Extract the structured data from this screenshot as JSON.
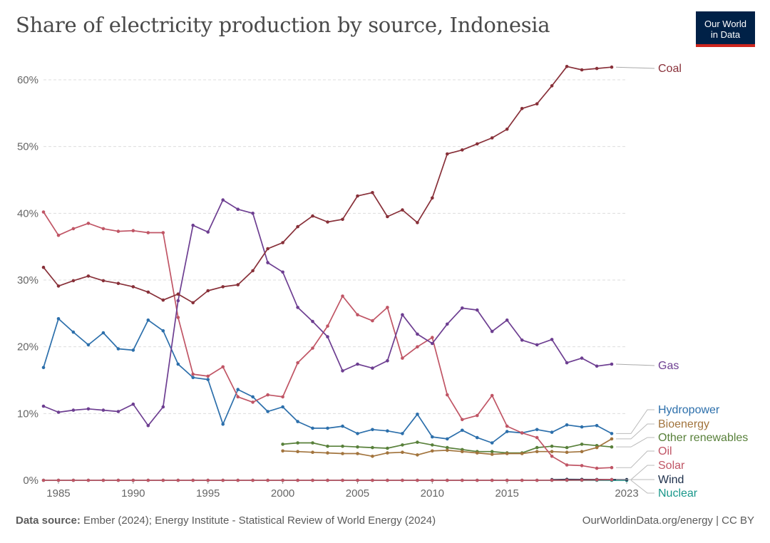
{
  "header": {
    "title": "Share of electricity production by source, Indonesia",
    "logo_line1": "Our World",
    "logo_line2": "in Data"
  },
  "footer": {
    "source_label": "Data source:",
    "source_text": "Ember (2024); Energy Institute - Statistical Review of World Energy (2024)",
    "url_text": "OurWorldinData.org/energy | CC BY"
  },
  "colors": {
    "Coal": "#883039",
    "Gas": "#6d3e91",
    "Hydropower": "#2c6fab",
    "Bioenergy": "#a2743d",
    "Other renewables": "#58803a",
    "Oil": "#c05565",
    "Solar": "#c05565",
    "Wind": "#1c2e4a",
    "Nuclear": "#18978a"
  },
  "chart_data": {
    "type": "line",
    "title": "Share of electricity production by source, Indonesia",
    "xlim": [
      1984,
      2023
    ],
    "ylim": [
      0,
      60
    ],
    "y_ticks": [
      "0%",
      "10%",
      "20%",
      "30%",
      "40%",
      "50%",
      "60%"
    ],
    "x_ticks": [
      "1985",
      "1990",
      "1995",
      "2000",
      "2005",
      "2010",
      "2015",
      "2023"
    ],
    "grid": true,
    "legend": "line-end labels, right",
    "series": [
      {
        "name": "Coal",
        "start": 1984,
        "values": [
          31.9,
          29.1,
          29.9,
          30.6,
          29.9,
          29.5,
          29.0,
          28.2,
          27.0,
          27.9,
          26.6,
          28.4,
          29.0,
          29.3,
          31.4,
          34.7,
          35.6,
          38.0,
          39.6,
          38.7,
          39.1,
          42.6,
          43.1,
          39.5,
          40.5,
          38.6,
          42.3,
          48.9,
          49.5,
          50.4,
          51.3,
          52.6,
          55.7,
          56.4,
          59.1,
          62.0,
          61.5,
          61.7,
          61.9
        ]
      },
      {
        "name": "Gas",
        "start": 1984,
        "values": [
          11.1,
          10.2,
          10.5,
          10.7,
          10.5,
          10.3,
          11.4,
          8.2,
          11.0,
          26.9,
          38.2,
          37.2,
          42.0,
          40.6,
          40.0,
          32.6,
          31.2,
          25.9,
          23.8,
          21.5,
          16.4,
          17.4,
          16.8,
          17.9,
          24.8,
          21.9,
          20.5,
          23.4,
          25.8,
          25.5,
          22.3,
          24.0,
          21.0,
          20.3,
          21.1,
          17.6,
          18.3,
          17.1,
          17.4
        ]
      },
      {
        "name": "Hydropower",
        "start": 1984,
        "values": [
          16.9,
          24.2,
          22.2,
          20.3,
          22.1,
          19.7,
          19.5,
          24.0,
          22.4,
          17.4,
          15.4,
          15.1,
          8.4,
          13.6,
          12.5,
          10.3,
          11.0,
          8.8,
          7.8,
          7.8,
          8.1,
          7.0,
          7.6,
          7.4,
          7.0,
          9.9,
          6.5,
          6.2,
          7.5,
          6.4,
          5.6,
          7.3,
          7.1,
          7.6,
          7.2,
          8.3,
          8.0,
          8.2,
          7.0
        ]
      },
      {
        "name": "Bioenergy",
        "start": 2000,
        "values": [
          4.4,
          4.3,
          4.2,
          4.1,
          4.0,
          4.0,
          3.6,
          4.1,
          4.2,
          3.8,
          4.4,
          4.5,
          4.3,
          4.1,
          3.9,
          4.0,
          4.0,
          4.3,
          4.3,
          4.2,
          4.3,
          4.9,
          6.2
        ]
      },
      {
        "name": "Other renewables",
        "start": 2000,
        "values": [
          5.4,
          5.6,
          5.6,
          5.1,
          5.1,
          5.0,
          4.9,
          4.8,
          5.3,
          5.7,
          5.3,
          4.9,
          4.6,
          4.3,
          4.3,
          4.1,
          4.1,
          4.9,
          5.1,
          4.9,
          5.4,
          5.2,
          5.0
        ]
      },
      {
        "name": "Oil",
        "start": 1984,
        "values": [
          40.2,
          36.7,
          37.7,
          38.5,
          37.7,
          37.3,
          37.4,
          37.1,
          37.1,
          24.4,
          15.9,
          15.6,
          17.0,
          12.5,
          11.7,
          12.8,
          12.5,
          17.6,
          19.8,
          23.1,
          27.6,
          24.8,
          23.9,
          25.9,
          18.3,
          20.0,
          21.4,
          12.8,
          9.1,
          9.7,
          12.7,
          8.1,
          7.1,
          6.4,
          3.6,
          2.3,
          2.2,
          1.8,
          1.9
        ]
      },
      {
        "name": "Solar",
        "start": 1984,
        "values": [
          0,
          0,
          0,
          0,
          0,
          0,
          0,
          0,
          0,
          0,
          0,
          0,
          0,
          0,
          0,
          0,
          0,
          0,
          0,
          0,
          0,
          0,
          0,
          0,
          0,
          0,
          0,
          0,
          0,
          0,
          0,
          0,
          0,
          0,
          0.01,
          0.02,
          0.03,
          0.06,
          0.1
        ]
      },
      {
        "name": "Wind",
        "start": 2018,
        "values": [
          0.1,
          0.14,
          0.13,
          0.12,
          0.11,
          0.1
        ]
      },
      {
        "name": "Nuclear",
        "start": 1984,
        "values": [
          0,
          0,
          0,
          0,
          0,
          0,
          0,
          0,
          0,
          0,
          0,
          0,
          0,
          0,
          0,
          0,
          0,
          0,
          0,
          0,
          0,
          0,
          0,
          0,
          0,
          0,
          0,
          0,
          0,
          0,
          0,
          0,
          0,
          0,
          0,
          0,
          0,
          0,
          0,
          0
        ]
      }
    ]
  }
}
